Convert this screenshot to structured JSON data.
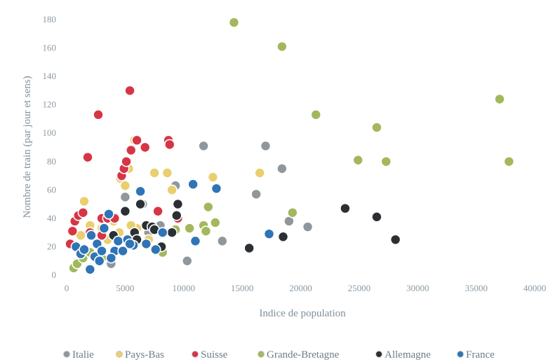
{
  "chart_data": {
    "type": "scatter",
    "title": "",
    "xlabel": "Indice de population",
    "ylabel": "Nombre de train (par jour et sens)",
    "xlim": [
      0,
      40000
    ],
    "ylim": [
      0,
      180
    ],
    "x_ticks": [
      0,
      5000,
      10000,
      15000,
      20000,
      25000,
      30000,
      35000,
      40000
    ],
    "y_ticks": [
      0,
      20,
      40,
      60,
      80,
      100,
      120,
      140,
      160,
      180
    ],
    "grid": false,
    "legend_position": "bottom",
    "series": [
      {
        "name": "Italie",
        "color": "#8f979d",
        "points": [
          [
            5000,
            55
          ],
          [
            6500,
            50
          ],
          [
            8000,
            35
          ],
          [
            9300,
            63
          ],
          [
            10300,
            10
          ],
          [
            11700,
            91
          ],
          [
            13300,
            24
          ],
          [
            16200,
            57
          ],
          [
            17000,
            91
          ],
          [
            18400,
            75
          ],
          [
            19000,
            38
          ],
          [
            20600,
            34
          ],
          [
            3800,
            8
          ],
          [
            7000,
            30
          ]
        ]
      },
      {
        "name": "Pays-Bas",
        "color": "#e9cf6e",
        "points": [
          [
            1500,
            52
          ],
          [
            2000,
            35
          ],
          [
            3000,
            33
          ],
          [
            4000,
            38
          ],
          [
            4600,
            68
          ],
          [
            5000,
            63
          ],
          [
            5300,
            75
          ],
          [
            5800,
            95
          ],
          [
            7500,
            72
          ],
          [
            8600,
            72
          ],
          [
            9000,
            60
          ],
          [
            12500,
            69
          ],
          [
            16500,
            72
          ],
          [
            4500,
            30
          ],
          [
            6000,
            33
          ],
          [
            2500,
            22
          ],
          [
            1200,
            28
          ],
          [
            3500,
            25
          ],
          [
            5500,
            35
          ],
          [
            7000,
            25
          ]
        ]
      },
      {
        "name": "Suisse",
        "color": "#d63546",
        "points": [
          [
            300,
            22
          ],
          [
            500,
            31
          ],
          [
            700,
            38
          ],
          [
            1000,
            42
          ],
          [
            1800,
            83
          ],
          [
            2700,
            113
          ],
          [
            3000,
            40
          ],
          [
            3500,
            40
          ],
          [
            4100,
            40
          ],
          [
            4700,
            70
          ],
          [
            4900,
            75
          ],
          [
            5100,
            80
          ],
          [
            5400,
            130
          ],
          [
            5500,
            88
          ],
          [
            6000,
            95
          ],
          [
            6700,
            90
          ],
          [
            7800,
            45
          ],
          [
            8700,
            95
          ],
          [
            8800,
            92
          ],
          [
            9500,
            40
          ],
          [
            2000,
            30
          ],
          [
            3000,
            28
          ],
          [
            1400,
            44
          ]
        ]
      },
      {
        "name": "Grande-Bretagne",
        "color": "#a3b85c",
        "points": [
          [
            600,
            5
          ],
          [
            900,
            8
          ],
          [
            1400,
            12
          ],
          [
            2000,
            16
          ],
          [
            3000,
            12
          ],
          [
            14300,
            178
          ],
          [
            18400,
            161
          ],
          [
            21300,
            113
          ],
          [
            24900,
            81
          ],
          [
            26500,
            104
          ],
          [
            27300,
            80
          ],
          [
            37000,
            124
          ],
          [
            37800,
            80
          ],
          [
            12100,
            48
          ],
          [
            12700,
            37
          ],
          [
            11700,
            35
          ],
          [
            19300,
            44
          ],
          [
            9300,
            32
          ],
          [
            10500,
            33
          ],
          [
            8200,
            16
          ],
          [
            11900,
            31
          ]
        ]
      },
      {
        "name": "Allemagne",
        "color": "#2c3035",
        "points": [
          [
            5000,
            45
          ],
          [
            5800,
            30
          ],
          [
            6300,
            50
          ],
          [
            6800,
            35
          ],
          [
            7300,
            34
          ],
          [
            8100,
            20
          ],
          [
            9000,
            30
          ],
          [
            9400,
            42
          ],
          [
            9500,
            50
          ],
          [
            15600,
            19
          ],
          [
            18500,
            27
          ],
          [
            23800,
            47
          ],
          [
            26500,
            41
          ],
          [
            28100,
            25
          ],
          [
            6000,
            25
          ],
          [
            7500,
            32
          ],
          [
            4000,
            28
          ]
        ]
      },
      {
        "name": "France",
        "color": "#2f74b6",
        "points": [
          [
            800,
            20
          ],
          [
            1200,
            15
          ],
          [
            1500,
            18
          ],
          [
            2000,
            4
          ],
          [
            2100,
            28
          ],
          [
            2400,
            13
          ],
          [
            2600,
            22
          ],
          [
            3000,
            17
          ],
          [
            3200,
            33
          ],
          [
            3600,
            43
          ],
          [
            4100,
            17
          ],
          [
            4400,
            24
          ],
          [
            4800,
            17
          ],
          [
            5200,
            25
          ],
          [
            5700,
            21
          ],
          [
            6300,
            59
          ],
          [
            6800,
            22
          ],
          [
            7600,
            18
          ],
          [
            8200,
            30
          ],
          [
            10800,
            64
          ],
          [
            11000,
            24
          ],
          [
            12800,
            61
          ],
          [
            17300,
            29
          ],
          [
            2800,
            10
          ],
          [
            3800,
            12
          ],
          [
            5400,
            22
          ]
        ]
      }
    ]
  }
}
